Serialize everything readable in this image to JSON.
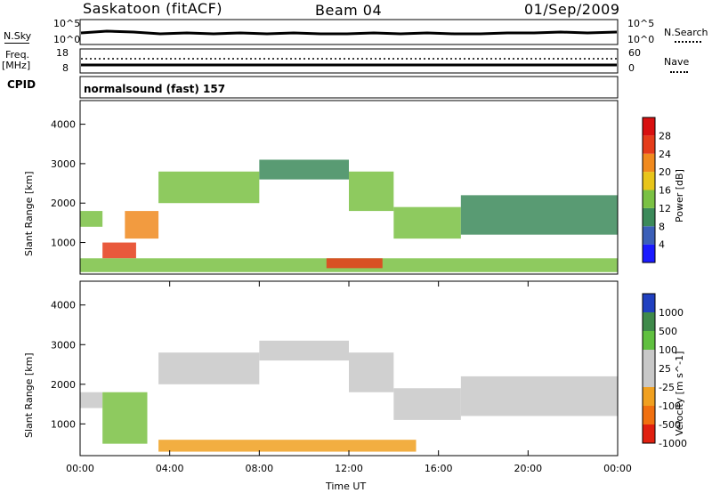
{
  "header": {
    "station": "Saskatoon (fitACF)",
    "beam": "Beam 04",
    "date": "01/Sep/2009"
  },
  "top_panels": {
    "nsky_label": "N.Sky",
    "nsky_ticks": [
      "10^5",
      "10^0"
    ],
    "nsearch_label": "N.Search",
    "nsearch_ticks": [
      "10^5",
      "10^0"
    ],
    "freq_label_1": "Freq.",
    "freq_label_2": "[MHz]",
    "freq_ticks": [
      "18",
      "8"
    ],
    "nave_label": "Nave",
    "nave_ticks": [
      "60",
      "0"
    ],
    "cpid_label": "CPID",
    "cpid_value": "normalsound (fast) 157"
  },
  "chart_data": [
    {
      "type": "heatmap",
      "name": "power",
      "ylabel": "Slant Range [km]",
      "yticks": [
        "1000",
        "2000",
        "3000",
        "4000"
      ],
      "ylim": [
        200,
        4600
      ],
      "xlabel": "",
      "xlim": [
        "00:00",
        "24:00"
      ],
      "colorbar_label": "Power [dB]",
      "colorbar_ticks": [
        "4",
        "8",
        "12",
        "16",
        "20",
        "24",
        "28"
      ],
      "colorbar_colors": [
        "#1a1aff",
        "#3b5fb8",
        "#3c8a5a",
        "#7ac143",
        "#e8c51a",
        "#f08a1e",
        "#e53c1a",
        "#d81010"
      ],
      "colorbar_range": [
        0,
        30
      ],
      "bands": [
        {
          "t0": 0.0,
          "t1": 1.0,
          "r0": 1400,
          "r1": 1800,
          "level": 12
        },
        {
          "t0": 1.0,
          "t1": 2.5,
          "r0": 600,
          "r1": 1000,
          "level": 26
        },
        {
          "t0": 2.0,
          "t1": 3.5,
          "r0": 1100,
          "r1": 1800,
          "level": 20
        },
        {
          "t0": 3.5,
          "t1": 8.0,
          "r0": 2000,
          "r1": 2800,
          "level": 12
        },
        {
          "t0": 8.0,
          "t1": 12.0,
          "r0": 2600,
          "r1": 3100,
          "level": 10
        },
        {
          "t0": 12.0,
          "t1": 14.0,
          "r0": 1800,
          "r1": 2800,
          "level": 14
        },
        {
          "t0": 14.0,
          "t1": 17.0,
          "r0": 1100,
          "r1": 1900,
          "level": 12
        },
        {
          "t0": 17.0,
          "t1": 24.0,
          "r0": 1200,
          "r1": 2200,
          "level": 10
        },
        {
          "t0": 0.0,
          "t1": 24.0,
          "r0": 250,
          "r1": 600,
          "level": 12
        },
        {
          "t0": 11.0,
          "t1": 13.5,
          "r0": 350,
          "r1": 600,
          "level": 24
        }
      ]
    },
    {
      "type": "heatmap",
      "name": "velocity",
      "ylabel": "Slant Range [km]",
      "yticks": [
        "1000",
        "2000",
        "3000",
        "4000"
      ],
      "ylim": [
        200,
        4600
      ],
      "xlabel": "Time UT",
      "xticks": [
        "00:00",
        "04:00",
        "08:00",
        "12:00",
        "16:00",
        "20:00",
        "00:00"
      ],
      "xlim": [
        "00:00",
        "24:00"
      ],
      "colorbar_label": "Velocity [m s^-1]",
      "colorbar_ticks": [
        "1000",
        "500",
        "100",
        "25",
        "-25",
        "-100",
        "-500",
        "-1000"
      ],
      "colorbar_colors": [
        "#2040c0",
        "#3f8a4a",
        "#60c040",
        "#c8c8c8",
        "#c8c8c8",
        "#f0a020",
        "#f07010",
        "#e02010"
      ],
      "bands": [
        {
          "t0": 0.0,
          "t1": 1.0,
          "r0": 1400,
          "r1": 1800,
          "level": "ground"
        },
        {
          "t0": 1.0,
          "t1": 3.0,
          "r0": 500,
          "r1": 1800,
          "level": "pos"
        },
        {
          "t0": 3.5,
          "t1": 8.0,
          "r0": 2000,
          "r1": 2800,
          "level": "ground"
        },
        {
          "t0": 8.0,
          "t1": 12.0,
          "r0": 2600,
          "r1": 3100,
          "level": "ground"
        },
        {
          "t0": 12.0,
          "t1": 14.0,
          "r0": 1800,
          "r1": 2800,
          "level": "ground"
        },
        {
          "t0": 14.0,
          "t1": 17.0,
          "r0": 1100,
          "r1": 1900,
          "level": "ground"
        },
        {
          "t0": 17.0,
          "t1": 24.0,
          "r0": 1200,
          "r1": 2200,
          "level": "ground"
        },
        {
          "t0": 3.5,
          "t1": 15.0,
          "r0": 300,
          "r1": 600,
          "level": "neg"
        }
      ]
    }
  ]
}
